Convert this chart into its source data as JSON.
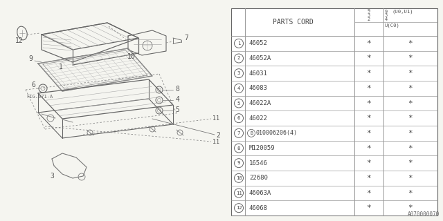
{
  "bg_color": "#ffffff",
  "parts": [
    [
      "1",
      "46052"
    ],
    [
      "2",
      "46052A"
    ],
    [
      "3",
      "46031"
    ],
    [
      "4",
      "46083"
    ],
    [
      "5",
      "46022A"
    ],
    [
      "6",
      "46022"
    ],
    [
      "7",
      "B010006206(4)"
    ],
    [
      "8",
      "M120059"
    ],
    [
      "9",
      "16546"
    ],
    [
      "10",
      "22680"
    ],
    [
      "11",
      "46063A"
    ],
    [
      "12",
      "46068"
    ]
  ],
  "footer_text": "A070000070",
  "line_color": "#888888",
  "text_color": "#555555",
  "table_line_color": "#999999",
  "font_size": 7
}
